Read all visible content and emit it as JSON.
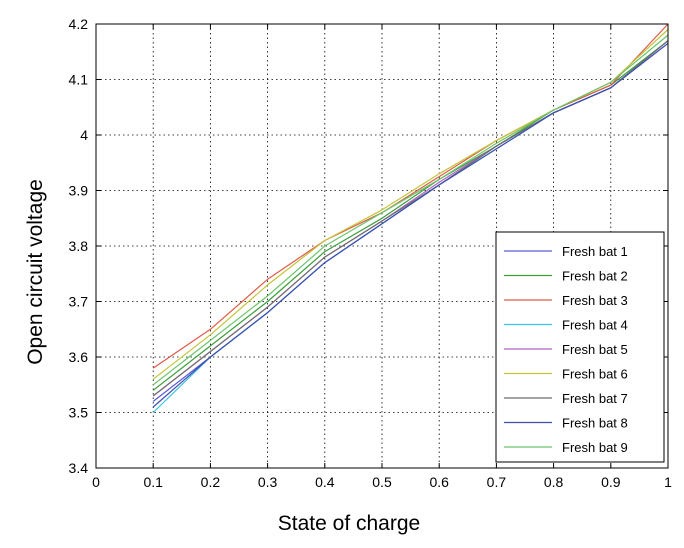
{
  "chart_data": {
    "type": "line",
    "title": "",
    "xlabel": "State of charge",
    "ylabel": "Open circuit voltage",
    "xlim": [
      0,
      1
    ],
    "ylim": [
      3.4,
      4.2
    ],
    "xticks": [
      "0",
      "0.1",
      "0.2",
      "0.3",
      "0.4",
      "0.5",
      "0.6",
      "0.7",
      "0.8",
      "0.9",
      "1"
    ],
    "yticks": [
      "3.4",
      "3.5",
      "3.6",
      "3.7",
      "3.8",
      "3.9",
      "4",
      "4.1",
      "4.2"
    ],
    "grid": true,
    "legend_position": "bottom-right",
    "x": [
      0.1,
      0.2,
      0.3,
      0.4,
      0.5,
      0.6,
      0.7,
      0.8,
      0.9,
      1.0
    ],
    "series": [
      {
        "name": "Fresh bat 1",
        "color": "#5a5ad8",
        "values": [
          3.52,
          3.6,
          3.68,
          3.77,
          3.84,
          3.91,
          3.98,
          4.04,
          4.085,
          4.17
        ]
      },
      {
        "name": "Fresh bat 2",
        "color": "#3a9e3a",
        "values": [
          3.54,
          3.62,
          3.7,
          3.79,
          3.85,
          3.92,
          3.98,
          4.045,
          4.09,
          4.17
        ]
      },
      {
        "name": "Fresh bat 3",
        "color": "#e05a4a",
        "values": [
          3.58,
          3.65,
          3.74,
          3.81,
          3.86,
          3.925,
          3.99,
          4.045,
          4.09,
          4.2
        ]
      },
      {
        "name": "Fresh bat 4",
        "color": "#3cc3df",
        "values": [
          3.5,
          3.6,
          3.68,
          3.77,
          3.84,
          3.91,
          3.975,
          4.04,
          4.085,
          4.17
        ]
      },
      {
        "name": "Fresh bat 5",
        "color": "#b064c4",
        "values": [
          3.53,
          3.61,
          3.69,
          3.78,
          3.845,
          3.915,
          3.98,
          4.04,
          4.085,
          4.17
        ]
      },
      {
        "name": "Fresh bat 6",
        "color": "#c4c43a",
        "values": [
          3.56,
          3.64,
          3.73,
          3.81,
          3.865,
          3.93,
          3.99,
          4.045,
          4.095,
          4.19
        ]
      },
      {
        "name": "Fresh bat 7",
        "color": "#6e6e6e",
        "values": [
          3.53,
          3.61,
          3.69,
          3.78,
          3.845,
          3.91,
          3.98,
          4.04,
          4.085,
          4.17
        ]
      },
      {
        "name": "Fresh bat 8",
        "color": "#3f4fb0",
        "values": [
          3.51,
          3.6,
          3.68,
          3.77,
          3.84,
          3.91,
          3.975,
          4.04,
          4.085,
          4.165
        ]
      },
      {
        "name": "Fresh bat 9",
        "color": "#6cc46c",
        "values": [
          3.55,
          3.63,
          3.71,
          3.8,
          3.86,
          3.92,
          3.985,
          4.045,
          4.095,
          4.18
        ]
      }
    ]
  }
}
